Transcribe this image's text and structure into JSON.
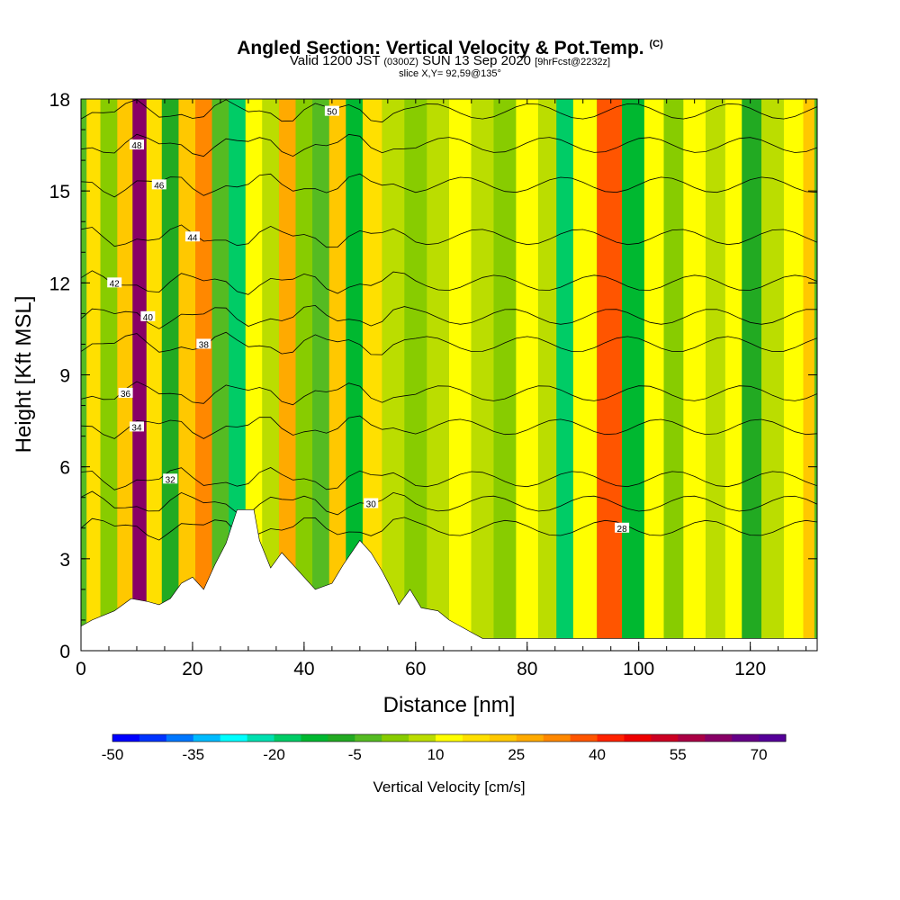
{
  "chart_data": {
    "type": "heatmap",
    "title": "Angled Section: Vertical Velocity & Pot.Temp.",
    "title_suffix": "(C)",
    "subtitle_parts": [
      "Valid 1200 JST",
      "(0300Z)",
      "SUN 13 Sep 2020",
      "[9hrFcst@2232z]"
    ],
    "slice_label": "slice X,Y= 92,59@135°",
    "xlabel": "Distance [nm]",
    "ylabel": "Height [Kft MSL]",
    "xlim": [
      0,
      132
    ],
    "ylim": [
      0,
      18
    ],
    "x_ticks": [
      "0",
      "20",
      "40",
      "60",
      "80",
      "100",
      "120"
    ],
    "y_ticks": [
      "0",
      "3",
      "6",
      "9",
      "12",
      "15",
      "18"
    ],
    "grid": false,
    "colorbar": {
      "label": "Vertical Velocity [cm/s]",
      "tick_labels": [
        "-50",
        "-35",
        "-20",
        "-5",
        "10",
        "25",
        "40",
        "55",
        "70"
      ],
      "tick_values": [
        -50,
        -35,
        -20,
        -5,
        10,
        25,
        40,
        55,
        70
      ],
      "min": -50,
      "max": 75,
      "step": 5,
      "colors": [
        "#0000ff",
        "#0033ff",
        "#0077ff",
        "#00bbff",
        "#00ffff",
        "#00e0b0",
        "#00cc66",
        "#00b830",
        "#22aa22",
        "#55bb22",
        "#88cc00",
        "#bbdd00",
        "#ffff00",
        "#ffe000",
        "#ffc800",
        "#ffaa00",
        "#ff8800",
        "#ff5500",
        "#ff2200",
        "#ee0000",
        "#cc0022",
        "#aa0044",
        "#880066",
        "#660088",
        "#550099"
      ]
    },
    "velocity_columns": [
      {
        "x": 2,
        "value": 15
      },
      {
        "x": 5,
        "value": 0
      },
      {
        "x": 8,
        "value": 20
      },
      {
        "x": 10.5,
        "value": 60
      },
      {
        "x": 13,
        "value": 15
      },
      {
        "x": 16,
        "value": -10
      },
      {
        "x": 19,
        "value": 20
      },
      {
        "x": 22,
        "value": 30
      },
      {
        "x": 25,
        "value": -5
      },
      {
        "x": 28,
        "value": -20
      },
      {
        "x": 31,
        "value": 10
      },
      {
        "x": 34,
        "value": 5
      },
      {
        "x": 37,
        "value": 25
      },
      {
        "x": 40,
        "value": 0
      },
      {
        "x": 43,
        "value": -5
      },
      {
        "x": 46,
        "value": 20
      },
      {
        "x": 49,
        "value": -15
      },
      {
        "x": 52,
        "value": 15
      },
      {
        "x": 56,
        "value": 5
      },
      {
        "x": 60,
        "value": 0
      },
      {
        "x": 64,
        "value": 5
      },
      {
        "x": 68,
        "value": 10
      },
      {
        "x": 72,
        "value": 5
      },
      {
        "x": 76,
        "value": 0
      },
      {
        "x": 80,
        "value": 10
      },
      {
        "x": 84,
        "value": 5
      },
      {
        "x": 86.5,
        "value": -20
      },
      {
        "x": 90,
        "value": 10
      },
      {
        "x": 95,
        "value": 35
      },
      {
        "x": 99,
        "value": -15
      },
      {
        "x": 103,
        "value": 10
      },
      {
        "x": 106,
        "value": 0
      },
      {
        "x": 110,
        "value": 10
      },
      {
        "x": 114,
        "value": 5
      },
      {
        "x": 117,
        "value": 10
      },
      {
        "x": 120,
        "value": -10
      },
      {
        "x": 124,
        "value": 5
      },
      {
        "x": 128,
        "value": 10
      },
      {
        "x": 131,
        "value": 20
      }
    ],
    "theta_contours": [
      {
        "label": "28",
        "height": 4.0,
        "label_x": 97
      },
      {
        "label": "30",
        "height": 4.8,
        "label_x": 52
      },
      {
        "label": "32",
        "height": 5.6,
        "label_x": 16
      },
      {
        "label": "34",
        "height": 7.3,
        "label_x": 10
      },
      {
        "label": "36",
        "height": 8.4,
        "label_x": 8
      },
      {
        "label": "38",
        "height": 10.0,
        "label_x": 22
      },
      {
        "label": "40",
        "height": 10.9,
        "label_x": 12
      },
      {
        "label": "42",
        "height": 12.0,
        "label_x": 6
      },
      {
        "label": "44",
        "height": 13.5,
        "label_x": 20
      },
      {
        "label": "46",
        "height": 15.2,
        "label_x": 14
      },
      {
        "label": "48",
        "height": 16.5,
        "label_x": 10
      },
      {
        "label": "50",
        "height": 17.6,
        "label_x": 45
      }
    ],
    "terrain": [
      [
        0,
        0.8
      ],
      [
        2,
        1.0
      ],
      [
        6,
        1.3
      ],
      [
        9,
        1.7
      ],
      [
        12,
        1.6
      ],
      [
        14,
        1.5
      ],
      [
        16,
        1.7
      ],
      [
        18,
        2.2
      ],
      [
        20,
        2.4
      ],
      [
        22,
        2.0
      ],
      [
        24,
        2.8
      ],
      [
        26,
        3.5
      ],
      [
        28,
        4.6
      ],
      [
        31,
        4.6
      ],
      [
        32,
        3.6
      ],
      [
        34,
        2.7
      ],
      [
        36,
        3.2
      ],
      [
        38,
        2.8
      ],
      [
        40,
        2.4
      ],
      [
        42,
        2.0
      ],
      [
        45,
        2.2
      ],
      [
        47,
        2.8
      ],
      [
        50,
        3.6
      ],
      [
        52,
        3.2
      ],
      [
        54,
        2.6
      ],
      [
        56,
        1.9
      ],
      [
        57,
        1.5
      ],
      [
        59,
        2.0
      ],
      [
        61,
        1.4
      ],
      [
        64,
        1.3
      ],
      [
        66,
        1.0
      ],
      [
        68,
        0.8
      ],
      [
        70,
        0.6
      ],
      [
        72,
        0.4
      ],
      [
        100,
        0.4
      ],
      [
        130,
        0.4
      ],
      [
        132,
        0.4
      ]
    ]
  }
}
